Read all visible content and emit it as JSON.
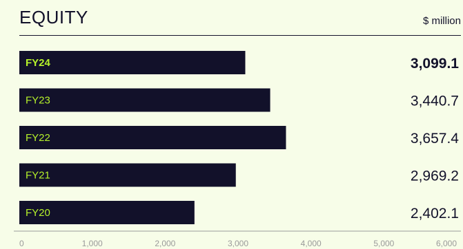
{
  "header": {
    "title": "EQUITY",
    "unit": "$ million"
  },
  "colors": {
    "background": "#f7fde8",
    "bar": "#12112a",
    "bar_label": "#b6f22a",
    "text": "#12112a",
    "axis": "#9a9a9a"
  },
  "chart_data": {
    "type": "bar",
    "orientation": "horizontal",
    "categories": [
      "FY24",
      "FY23",
      "FY22",
      "FY21",
      "FY20"
    ],
    "values": [
      3099.1,
      3440.7,
      3657.4,
      2969.2,
      2402.1
    ],
    "value_labels": [
      "3,099.1",
      "3,440.7",
      "3,657.4",
      "2,969.2",
      "2,402.1"
    ],
    "highlight": "FY24",
    "xlim": [
      0,
      6000
    ],
    "xticks": [
      0,
      1000,
      2000,
      3000,
      4000,
      5000,
      6000
    ],
    "xtick_labels": [
      "0",
      "1,000",
      "2,000",
      "3,000",
      "4,000",
      "5,000",
      "6,000"
    ],
    "title": "EQUITY",
    "unit": "$ million",
    "xlabel": "",
    "ylabel": "",
    "grid": false,
    "legend": "none"
  }
}
